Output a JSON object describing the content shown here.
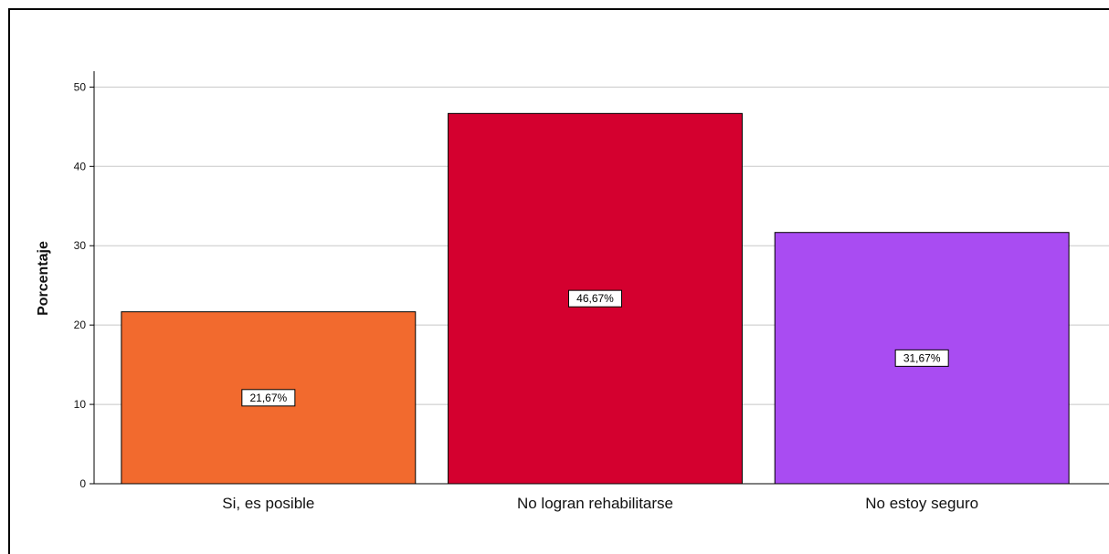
{
  "chart_data": {
    "type": "bar",
    "categories": [
      "Si, es posible",
      "No logran rehabilitarse",
      "No estoy seguro"
    ],
    "values": [
      21.67,
      46.67,
      31.67
    ],
    "data_labels": [
      "21,67%",
      "46,67%",
      "31,67%"
    ],
    "colors": [
      "#f26a2e",
      "#d4002f",
      "#a94cf2"
    ],
    "ylabel": "Porcentaje",
    "xlabel": "",
    "ylim": [
      0,
      52
    ],
    "yticks": [
      0,
      10,
      20,
      30,
      40,
      50
    ],
    "grid": true
  }
}
